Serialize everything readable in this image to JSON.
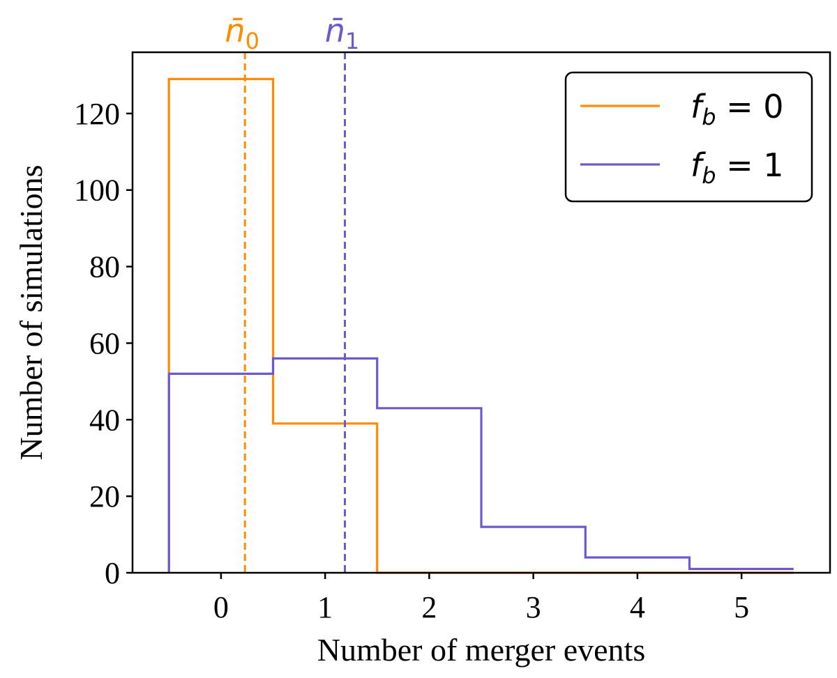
{
  "chart_data": {
    "type": "histogram-step",
    "xlabel": "Number of merger events",
    "ylabel": "Number of simulations",
    "xlim": [
      -0.85,
      5.85
    ],
    "ylim": [
      0,
      136
    ],
    "xticks": [
      0,
      1,
      2,
      3,
      4,
      5
    ],
    "yticks": [
      0,
      20,
      40,
      60,
      80,
      100,
      120
    ],
    "bin_edges": [
      -0.5,
      0.5,
      1.5,
      2.5,
      3.5,
      4.5,
      5.5
    ],
    "legend_position": "top-right",
    "grid": false,
    "series": [
      {
        "name": "f_b = 0",
        "legend_label": "f",
        "legend_sub": "b",
        "legend_rest": " = 0",
        "color": "#ff8c00",
        "counts": [
          129,
          39,
          0,
          0,
          0,
          0
        ],
        "mean": 0.23,
        "mean_label": "n̄",
        "mean_sub": "0"
      },
      {
        "name": "f_b = 1",
        "legend_label": "f",
        "legend_sub": "b",
        "legend_rest": " = 1",
        "color": "#6a5acd",
        "counts": [
          52,
          56,
          43,
          12,
          4,
          1
        ],
        "mean": 1.19,
        "mean_label": "n̄",
        "mean_sub": "1"
      }
    ]
  }
}
